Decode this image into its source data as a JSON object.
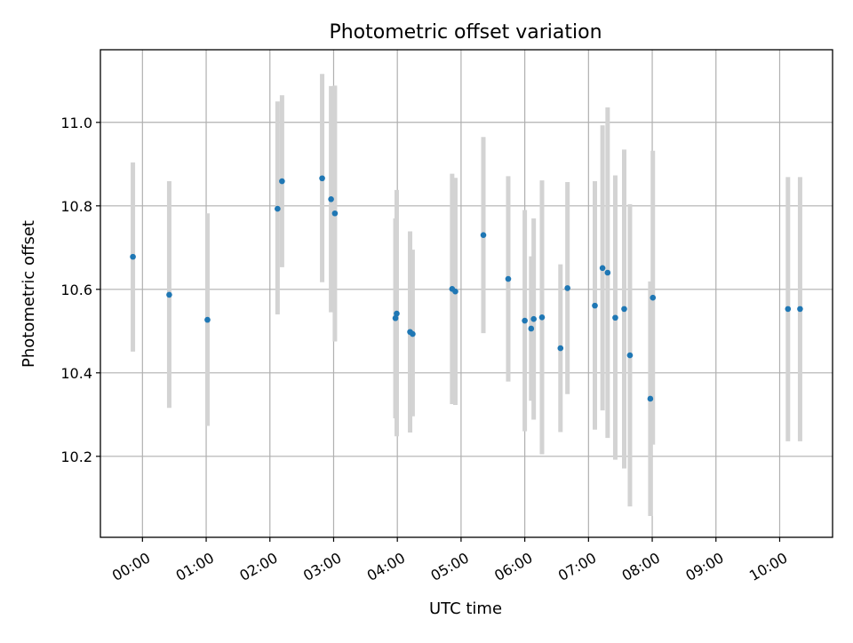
{
  "chart_data": {
    "type": "scatter",
    "title": "Photometric offset variation",
    "xlabel": "UTC time",
    "ylabel": "Photometric offset",
    "x_tick_labels": [
      "00:00",
      "01:00",
      "02:00",
      "03:00",
      "04:00",
      "05:00",
      "06:00",
      "07:00",
      "08:00",
      "09:00",
      "10:00"
    ],
    "y_tick_labels": [
      "10.2",
      "10.4",
      "10.6",
      "10.8",
      "11.0"
    ],
    "x_ticks_hours": [
      0,
      1,
      2,
      3,
      4,
      5,
      6,
      7,
      8,
      9,
      10
    ],
    "y_ticks": [
      10.2,
      10.4,
      10.6,
      10.8,
      11.0
    ],
    "xlim_hours": [
      -0.66,
      10.83
    ],
    "ylim": [
      10.006,
      11.174
    ],
    "grid": true,
    "point_color": "#1f77b4",
    "errorbar_color": "#d3d3d3",
    "series": [
      {
        "points": [
          {
            "t": -0.15,
            "y": 10.678,
            "lo": 10.451,
            "hi": 10.904
          },
          {
            "t": 0.42,
            "y": 10.587,
            "lo": 10.316,
            "hi": 10.859
          },
          {
            "t": 1.02,
            "y": 10.527,
            "lo": 10.273,
            "hi": 10.782
          },
          {
            "t": 2.12,
            "y": 10.793,
            "lo": 10.54,
            "hi": 11.05
          },
          {
            "t": 2.19,
            "y": 10.859,
            "lo": 10.653,
            "hi": 11.065
          },
          {
            "t": 2.82,
            "y": 10.866,
            "lo": 10.617,
            "hi": 11.116
          },
          {
            "t": 2.96,
            "y": 10.816,
            "lo": 10.545,
            "hi": 11.087
          },
          {
            "t": 3.02,
            "y": 10.782,
            "lo": 10.475,
            "hi": 11.088
          },
          {
            "t": 3.97,
            "y": 10.531,
            "lo": 10.291,
            "hi": 10.77
          },
          {
            "t": 3.99,
            "y": 10.542,
            "lo": 10.248,
            "hi": 10.838
          },
          {
            "t": 4.2,
            "y": 10.498,
            "lo": 10.257,
            "hi": 10.739
          },
          {
            "t": 4.24,
            "y": 10.493,
            "lo": 10.296,
            "hi": 10.695
          },
          {
            "t": 4.86,
            "y": 10.601,
            "lo": 10.325,
            "hi": 10.877
          },
          {
            "t": 4.91,
            "y": 10.595,
            "lo": 10.323,
            "hi": 10.867
          },
          {
            "t": 5.35,
            "y": 10.73,
            "lo": 10.495,
            "hi": 10.965
          },
          {
            "t": 5.74,
            "y": 10.625,
            "lo": 10.379,
            "hi": 10.871
          },
          {
            "t": 6.0,
            "y": 10.525,
            "lo": 10.26,
            "hi": 10.79
          },
          {
            "t": 6.1,
            "y": 10.506,
            "lo": 10.333,
            "hi": 10.679
          },
          {
            "t": 6.14,
            "y": 10.529,
            "lo": 10.288,
            "hi": 10.77
          },
          {
            "t": 6.27,
            "y": 10.533,
            "lo": 10.205,
            "hi": 10.861
          },
          {
            "t": 6.56,
            "y": 10.459,
            "lo": 10.258,
            "hi": 10.66
          },
          {
            "t": 6.67,
            "y": 10.603,
            "lo": 10.349,
            "hi": 10.857
          },
          {
            "t": 7.1,
            "y": 10.561,
            "lo": 10.264,
            "hi": 10.859
          },
          {
            "t": 7.22,
            "y": 10.651,
            "lo": 10.31,
            "hi": 10.993
          },
          {
            "t": 7.3,
            "y": 10.64,
            "lo": 10.244,
            "hi": 11.036
          },
          {
            "t": 7.42,
            "y": 10.532,
            "lo": 10.192,
            "hi": 10.873
          },
          {
            "t": 7.56,
            "y": 10.553,
            "lo": 10.171,
            "hi": 10.935
          },
          {
            "t": 7.65,
            "y": 10.442,
            "lo": 10.08,
            "hi": 10.804
          },
          {
            "t": 7.97,
            "y": 10.338,
            "lo": 10.057,
            "hi": 10.619
          },
          {
            "t": 8.01,
            "y": 10.58,
            "lo": 10.228,
            "hi": 10.932
          },
          {
            "t": 10.13,
            "y": 10.553,
            "lo": 10.236,
            "hi": 10.869
          },
          {
            "t": 10.32,
            "y": 10.553,
            "lo": 10.236,
            "hi": 10.869
          }
        ]
      }
    ]
  }
}
